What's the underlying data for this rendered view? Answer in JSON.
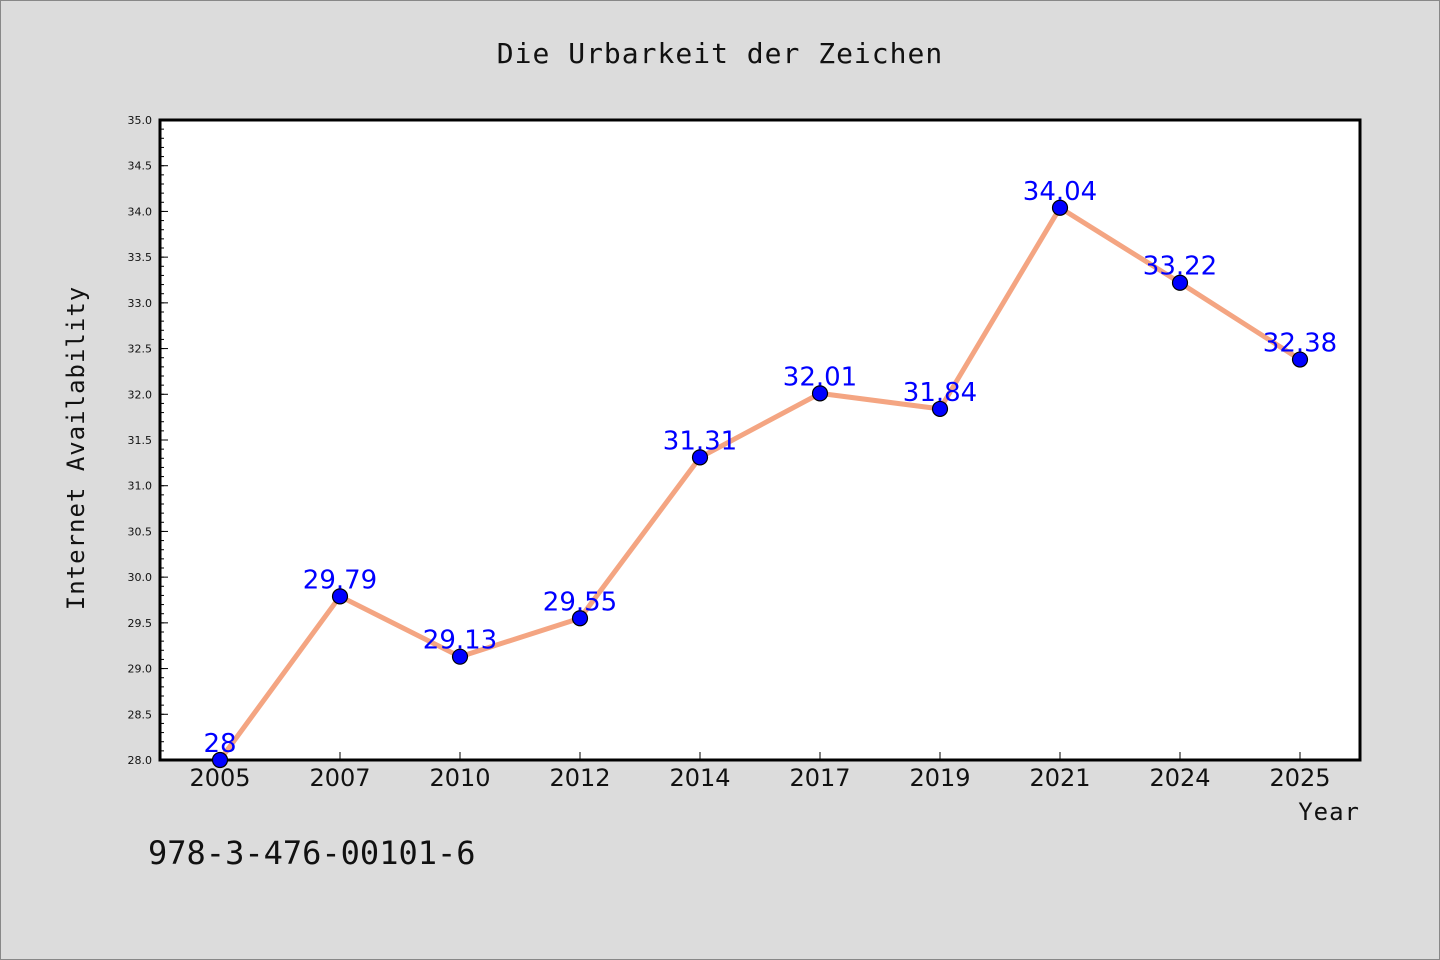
{
  "chart_data": {
    "type": "line",
    "title": "Die Urbarkeit der Zeichen",
    "xlabel": "Year",
    "ylabel": "Internet Availability",
    "categories": [
      "2005",
      "2007",
      "2010",
      "2012",
      "2014",
      "2017",
      "2019",
      "2021",
      "2024",
      "2025"
    ],
    "series": [
      {
        "values": [
          28,
          29.79,
          29.13,
          29.55,
          31.31,
          32.01,
          31.84,
          34.04,
          33.22,
          32.38
        ],
        "labels": [
          "28",
          "29.79",
          "29.13",
          "29.55",
          "31.31",
          "32.01",
          "31.84",
          "34.04",
          "33.22",
          "32.38"
        ]
      }
    ],
    "ylim": [
      28.0,
      35.0
    ],
    "yticks": [
      "28.0",
      "28.5",
      "29.0",
      "29.5",
      "30.0",
      "30.5",
      "31.0",
      "31.5",
      "32.0",
      "32.5",
      "33.0",
      "33.5",
      "34.0",
      "34.5",
      "35.0"
    ],
    "grid": false,
    "legend": "none",
    "colors": {
      "line": "#f4a582",
      "marker": "#0000ff",
      "data_label": "#0000ff",
      "background": "#dcdcdc",
      "plot_background": "#ffffff"
    }
  },
  "footnote": "978-3-476-00101-6"
}
